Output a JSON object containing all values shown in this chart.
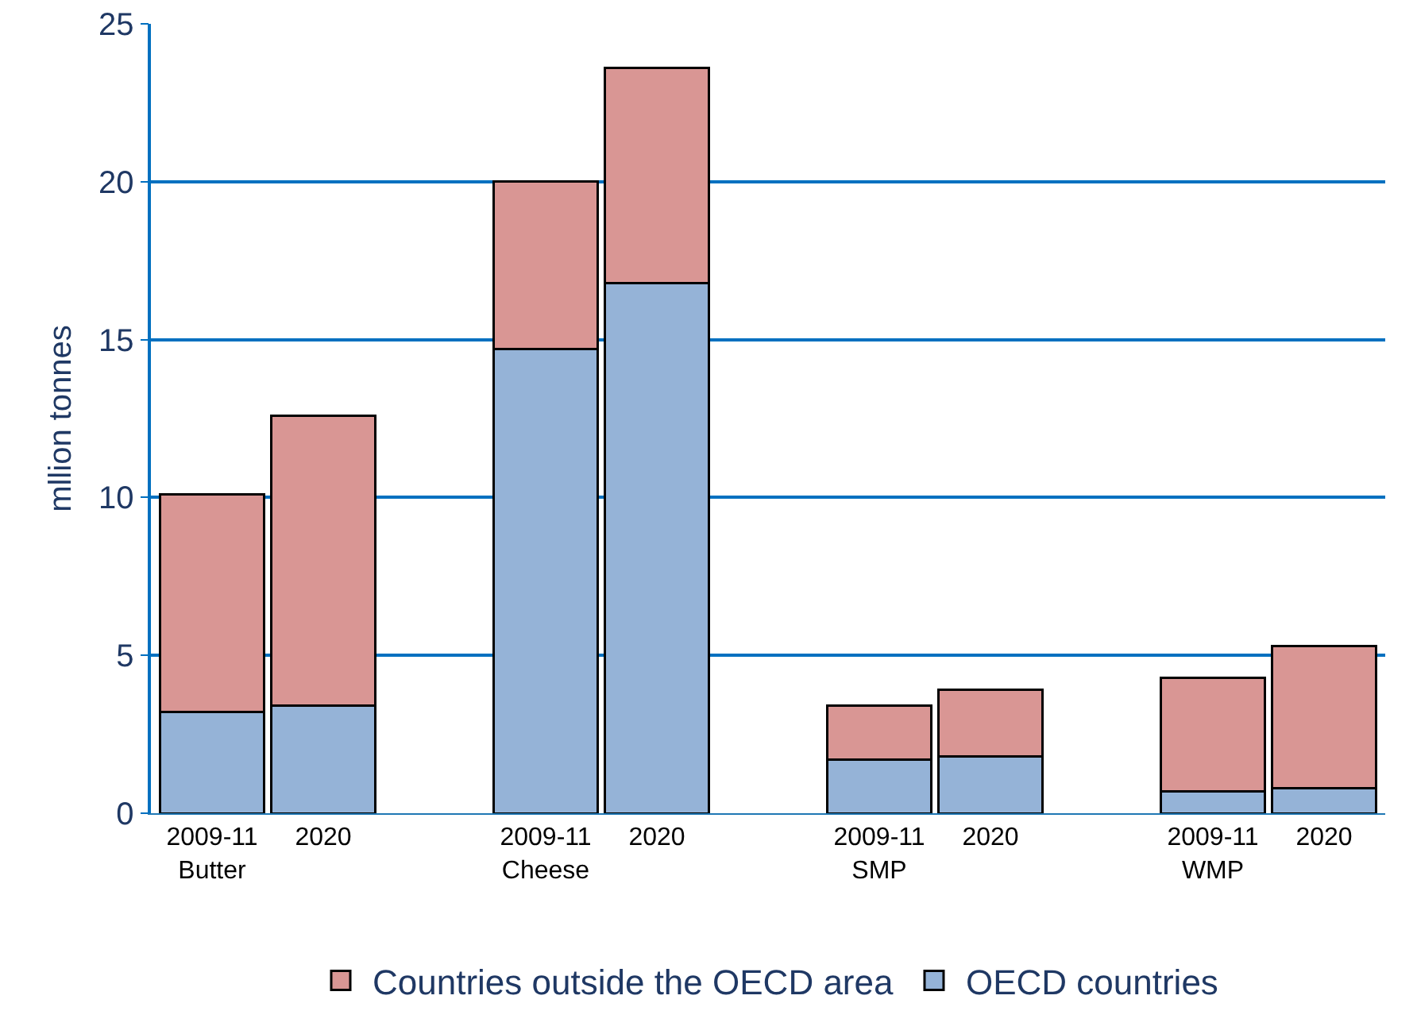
{
  "chart_data": {
    "type": "bar",
    "stacked": true,
    "ylabel": "mllion tonnes",
    "categories": [
      "2009-11\nButter",
      "2020",
      null,
      "2009-11\nCheese",
      "2020",
      null,
      "2009-11\nSMP",
      "2020",
      null,
      "2009-11\nWMP",
      "2020"
    ],
    "series": [
      {
        "name": "OECD countries",
        "color": "#95b3d7",
        "values": [
          3.2,
          3.4,
          null,
          14.7,
          16.8,
          null,
          1.7,
          1.8,
          null,
          0.7,
          0.8
        ]
      },
      {
        "name": "Countries outside the OECD area",
        "color": "#d99694",
        "values": [
          6.9,
          9.2,
          null,
          5.3,
          6.8,
          null,
          1.7,
          2.1,
          null,
          3.6,
          4.5
        ]
      }
    ],
    "ylim": [
      0,
      25
    ],
    "yticks": [
      0,
      5,
      10,
      15,
      20,
      25
    ],
    "grid": "y",
    "legend": "bottom"
  }
}
